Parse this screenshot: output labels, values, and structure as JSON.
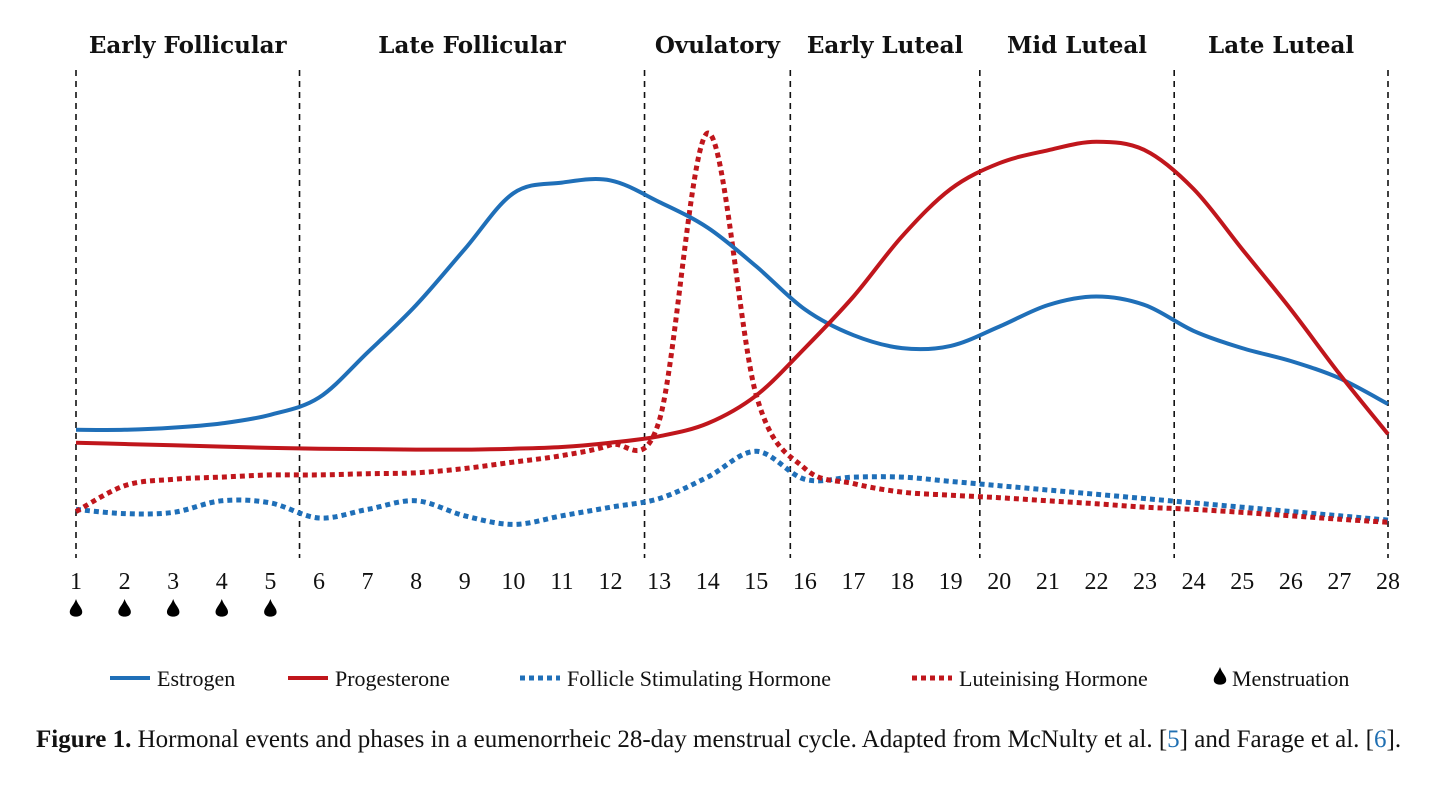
{
  "chart_data": {
    "type": "line",
    "x_label": "",
    "y_label": "",
    "x": [
      1,
      2,
      3,
      4,
      5,
      6,
      7,
      8,
      9,
      10,
      11,
      12,
      13,
      14,
      15,
      16,
      17,
      18,
      19,
      20,
      21,
      22,
      23,
      24,
      25,
      26,
      27,
      28
    ],
    "x_ticks": [
      "1",
      "2",
      "3",
      "4",
      "5",
      "6",
      "7",
      "8",
      "9",
      "10",
      "11",
      "12",
      "13",
      "14",
      "15",
      "16",
      "17",
      "18",
      "19",
      "20",
      "21",
      "22",
      "23",
      "24",
      "25",
      "26",
      "27",
      "28"
    ],
    "y_range": [
      0,
      100
    ],
    "phases": [
      {
        "label": "Early Follicular",
        "start": 1,
        "end": 5.6
      },
      {
        "label": "Late Follicular",
        "start": 5.6,
        "end": 12.7
      },
      {
        "label": "Ovulatory",
        "start": 12.7,
        "end": 15.7
      },
      {
        "label": "Early Luteal",
        "start": 15.7,
        "end": 19.6
      },
      {
        "label": "Mid Luteal",
        "start": 19.6,
        "end": 23.6
      },
      {
        "label": "Late Luteal",
        "start": 23.6,
        "end": 28
      }
    ],
    "series": [
      {
        "name": "Estrogen",
        "color": "#1f6fb8",
        "style": "solid",
        "values": [
          24,
          24,
          24.5,
          25.5,
          27.5,
          31.5,
          42,
          53,
          66,
          79,
          81.5,
          82,
          77,
          71,
          62,
          52,
          46,
          43,
          43.5,
          48,
          53,
          55,
          53,
          47,
          43,
          40,
          36,
          30
        ]
      },
      {
        "name": "Progesterone",
        "color": "#c0161c",
        "style": "solid",
        "values": [
          21,
          20.7,
          20.4,
          20.1,
          19.8,
          19.6,
          19.5,
          19.4,
          19.4,
          19.6,
          20,
          21,
          22.5,
          25.5,
          32,
          43,
          55,
          69,
          80,
          86,
          89,
          91,
          89,
          80,
          66,
          52,
          37,
          23
        ]
      },
      {
        "name": "Follicle Stimulating Hormone",
        "color": "#1f6fb8",
        "style": "dotted",
        "values": [
          5.5,
          4.5,
          4.8,
          7.5,
          7,
          3.5,
          5.5,
          7.5,
          4,
          2,
          4,
          6,
          8,
          13,
          19,
          12.5,
          13,
          13,
          12,
          11,
          10,
          9,
          8,
          7,
          6,
          5,
          4,
          3
        ]
      },
      {
        "name": "Luteinising Hormone",
        "color": "#c0161c",
        "style": "dotted",
        "values": [
          5,
          11,
          12.5,
          13,
          13.5,
          13.5,
          13.8,
          14,
          15,
          16.5,
          18,
          20.5,
          26,
          93,
          32,
          15,
          11.5,
          9.5,
          8.8,
          8.2,
          7.5,
          6.8,
          6,
          5.5,
          4.8,
          4,
          3.2,
          2.5
        ]
      }
    ],
    "menstruation_days": [
      1,
      2,
      3,
      4,
      5
    ],
    "legend": [
      {
        "label": "Estrogen",
        "kind": "solid",
        "color": "#1f6fb8"
      },
      {
        "label": "Progesterone",
        "kind": "solid",
        "color": "#c0161c"
      },
      {
        "label": "Follicle Stimulating Hormone",
        "kind": "dotted",
        "color": "#1f6fb8"
      },
      {
        "label": "Luteinising Hormone",
        "kind": "dotted",
        "color": "#c0161c"
      },
      {
        "label": "Menstruation",
        "kind": "drop",
        "color": "#000000"
      }
    ],
    "legend_position": "bottom"
  },
  "caption": {
    "label": "Figure 1.",
    "text_1": " Hormonal events and phases in a eumenorrheic 28-day menstrual cycle. Adapted from McNulty et al. [",
    "ref_1": "5",
    "text_2": "] and Farage et al. [",
    "ref_2": "6",
    "text_3": "]."
  }
}
